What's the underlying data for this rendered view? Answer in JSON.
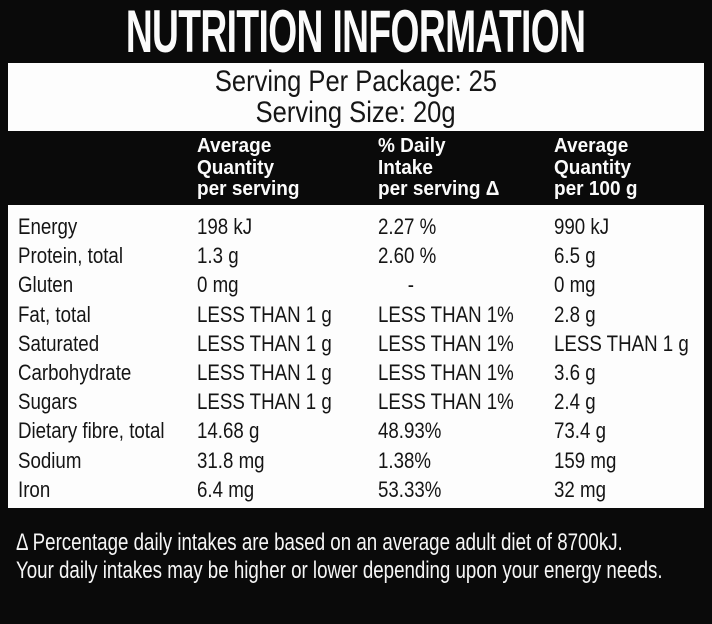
{
  "label": {
    "title": "NUTRITION INFORMATION",
    "serving_per_package": "Serving Per Package: 25",
    "serving_size": "Serving Size: 20g"
  },
  "table": {
    "columns": {
      "nutrient": "",
      "per_serving": "Average\nQuantity\nper serving",
      "daily_intake": "% Daily\nIntake\nper serving Δ",
      "per_100g": "Average\nQuantity\nper 100 g"
    },
    "rows": [
      {
        "nutrient": "Energy",
        "per_serving": "198 kJ",
        "daily_intake": "2.27 %",
        "per_100g": "990 kJ"
      },
      {
        "nutrient": "Protein, total",
        "per_serving": "1.3 g",
        "daily_intake": "2.60 %",
        "per_100g": "6.5 g"
      },
      {
        "nutrient": "Gluten",
        "per_serving": "0 mg",
        "daily_intake": "-",
        "per_100g": "0 mg"
      },
      {
        "nutrient": "Fat, total",
        "per_serving": "LESS THAN 1 g",
        "daily_intake": "LESS THAN 1%",
        "per_100g": "2.8 g"
      },
      {
        "nutrient": "Saturated",
        "per_serving": "LESS THAN 1 g",
        "daily_intake": "LESS THAN 1%",
        "per_100g": "LESS THAN 1 g"
      },
      {
        "nutrient": "Carbohydrate",
        "per_serving": "LESS THAN 1 g",
        "daily_intake": "LESS THAN 1%",
        "per_100g": "3.6 g"
      },
      {
        "nutrient": "Sugars",
        "per_serving": "LESS THAN 1 g",
        "daily_intake": "LESS THAN 1%",
        "per_100g": "2.4 g"
      },
      {
        "nutrient": "Dietary fibre, total",
        "per_serving": "14.68 g",
        "daily_intake": "48.93%",
        "per_100g": "73.4 g"
      },
      {
        "nutrient": "Sodium",
        "per_serving": "31.8 mg",
        "daily_intake": "1.38%",
        "per_100g": "159 mg"
      },
      {
        "nutrient": "Iron",
        "per_serving": "6.4 mg",
        "daily_intake": "53.33%",
        "per_100g": "32 mg"
      }
    ]
  },
  "footnote": {
    "line1": "Δ Percentage daily intakes are based on an average adult diet of 8700kJ.",
    "line2": "Your daily intakes may be higher or lower depending upon your energy needs."
  },
  "colors": {
    "frame_background": "#0a0a0a",
    "panel_background": "#fdfdfd",
    "dark_text": "#151515",
    "light_text": "#fbfbfb"
  }
}
